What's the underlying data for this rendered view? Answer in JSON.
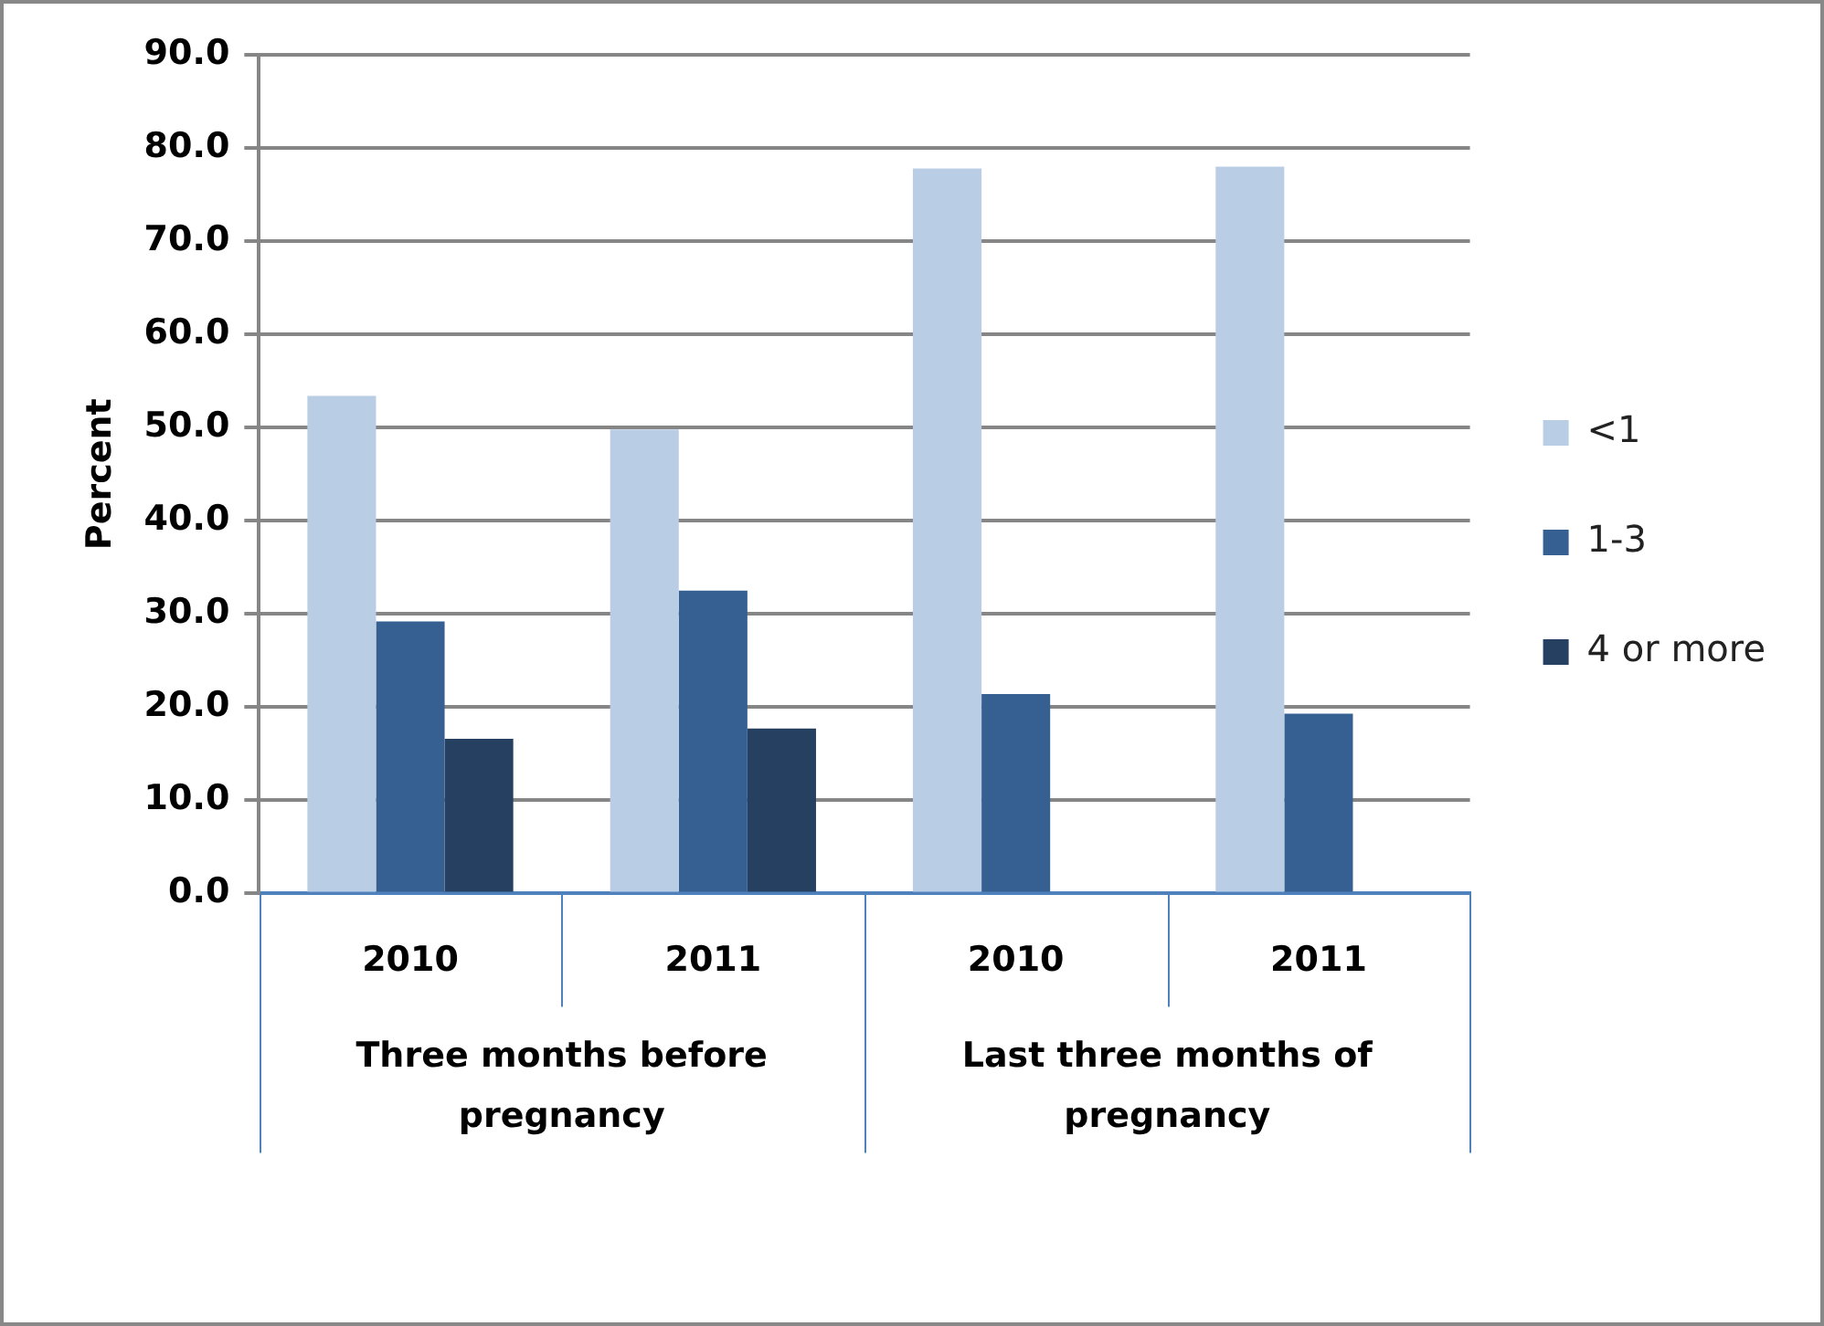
{
  "chart_data": {
    "type": "bar",
    "ylabel": "Percent",
    "categories": [
      "2010",
      "2011",
      "2010",
      "2011"
    ],
    "annotations": [
      "Three months before pregnancy",
      "Last three months of pregnancy"
    ],
    "series": [
      {
        "name": "<1",
        "color": "#b9cde5",
        "values": [
          53.4,
          49.8,
          77.8,
          78.0
        ]
      },
      {
        "name": "1-3",
        "color": "#376092",
        "values": [
          29.2,
          32.5,
          21.4,
          19.3
        ]
      },
      {
        "name": "4 or more",
        "color": "#254061",
        "values": [
          16.6,
          17.7,
          null,
          null
        ]
      }
    ],
    "ylim": [
      0,
      90
    ],
    "yticks": [
      {
        "value": 0,
        "label": "0.0"
      },
      {
        "value": 10,
        "label": "10.0"
      },
      {
        "value": 20,
        "label": "20.0"
      },
      {
        "value": 30,
        "label": "30.0"
      },
      {
        "value": 40,
        "label": "40.0"
      },
      {
        "value": 50,
        "label": "50.0"
      },
      {
        "value": 60,
        "label": "60.0"
      },
      {
        "value": 70,
        "label": "70.0"
      },
      {
        "value": 80,
        "label": "80.0"
      },
      {
        "value": 90,
        "label": "90.0"
      }
    ],
    "grid": "y",
    "legend": "right"
  }
}
